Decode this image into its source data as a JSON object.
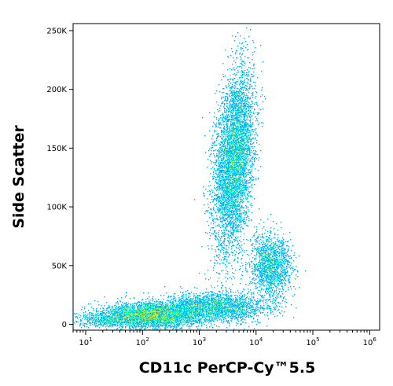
{
  "chart_data": {
    "type": "scatter",
    "xlabel": "CD11c PerCP-Cy™5.5",
    "ylabel": "Side Scatter",
    "x_scale": "log",
    "xlim": [
      6,
      1500000
    ],
    "ylim": [
      -5000,
      256000
    ],
    "x_ticks": [
      {
        "value": 10,
        "base": "10",
        "exp": "1"
      },
      {
        "value": 100,
        "base": "10",
        "exp": "2"
      },
      {
        "value": 1000,
        "base": "10",
        "exp": "3"
      },
      {
        "value": 10000,
        "base": "10",
        "exp": "4"
      },
      {
        "value": 100000,
        "base": "10",
        "exp": "5"
      },
      {
        "value": 1000000,
        "base": "10",
        "exp": "6"
      }
    ],
    "y_ticks": [
      {
        "value": 0,
        "label": "0"
      },
      {
        "value": 50000,
        "label": "50K"
      },
      {
        "value": 100000,
        "label": "100K"
      },
      {
        "value": 150000,
        "label": "150K"
      },
      {
        "value": 200000,
        "label": "200K"
      },
      {
        "value": 250000,
        "label": "250K"
      }
    ],
    "grid": false,
    "colormap": [
      "#0000cc",
      "#0050ff",
      "#00b4ff",
      "#00ffc8",
      "#96ff32",
      "#ffff00",
      "#ff9600",
      "#ff0000"
    ],
    "populations": [
      {
        "x_center": 4000,
        "y_center": 140000,
        "x_spread_log": 0.17,
        "y_spread": 35000,
        "tilt": 0.35,
        "count": 5500
      },
      {
        "x_center": 150,
        "y_center": 8000,
        "x_spread_log": 0.4,
        "y_spread": 5000,
        "tilt": 0.0,
        "count": 4500
      },
      {
        "x_center": 1800,
        "y_center": 15000,
        "x_spread_log": 0.45,
        "y_spread": 6000,
        "tilt": 0.0,
        "count": 2500
      },
      {
        "x_center": 18000,
        "y_center": 50000,
        "x_spread_log": 0.18,
        "y_spread": 13000,
        "tilt": 0.0,
        "count": 1600
      },
      {
        "x_center": 20,
        "y_center": 4000,
        "x_spread_log": 0.25,
        "y_spread": 3000,
        "tilt": 0.0,
        "count": 500
      }
    ]
  }
}
